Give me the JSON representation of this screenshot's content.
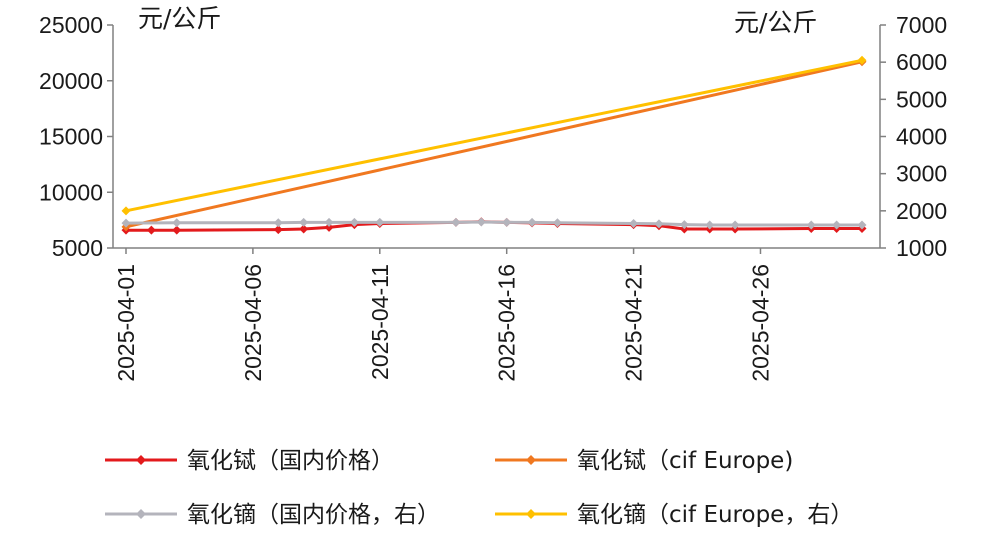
{
  "chart_data": {
    "type": "line",
    "title": "",
    "left_unit": "元/公斤",
    "right_unit": "元/公斤",
    "y_left": {
      "min": 5000,
      "max": 25000,
      "ticks": [
        "25000",
        "20000",
        "15000",
        "10000",
        "5000"
      ]
    },
    "y_right": {
      "min": 1000,
      "max": 7000,
      "ticks": [
        "7000",
        "6000",
        "5000",
        "4000",
        "3000",
        "2000",
        "1000"
      ]
    },
    "x_range": [
      "2025-04-01",
      "2025-04-30"
    ],
    "x_ticks": [
      "2025-04-01",
      "2025-04-06",
      "2025-04-11",
      "2025-04-16",
      "2025-04-21",
      "2025-04-26"
    ],
    "grid": false,
    "legend_position": "bottom",
    "series": [
      {
        "name": "氧化铽（国内价格）",
        "axis": "left",
        "color": "#e31a1c",
        "points": [
          [
            "2025-04-01",
            6600
          ],
          [
            "2025-04-02",
            6600
          ],
          [
            "2025-04-03",
            6600
          ],
          [
            "2025-04-07",
            6650
          ],
          [
            "2025-04-08",
            6700
          ],
          [
            "2025-04-09",
            6850
          ],
          [
            "2025-04-10",
            7100
          ],
          [
            "2025-04-11",
            7200
          ],
          [
            "2025-04-14",
            7300
          ],
          [
            "2025-04-15",
            7350
          ],
          [
            "2025-04-16",
            7300
          ],
          [
            "2025-04-17",
            7250
          ],
          [
            "2025-04-18",
            7200
          ],
          [
            "2025-04-21",
            7100
          ],
          [
            "2025-04-22",
            7000
          ],
          [
            "2025-04-23",
            6700
          ],
          [
            "2025-04-24",
            6700
          ],
          [
            "2025-04-25",
            6700
          ],
          [
            "2025-04-28",
            6750
          ],
          [
            "2025-04-29",
            6750
          ],
          [
            "2025-04-30",
            6750
          ]
        ]
      },
      {
        "name": "氧化铽（cif Europe)",
        "axis": "left",
        "color": "#f07820",
        "points": [
          [
            "2025-04-01",
            6900
          ],
          [
            "2025-04-30",
            21700
          ]
        ]
      },
      {
        "name": "氧化镝（国内价格，右）",
        "axis": "right",
        "color": "#b4b4bc",
        "points": [
          [
            "2025-04-01",
            1670
          ],
          [
            "2025-04-03",
            1680
          ],
          [
            "2025-04-07",
            1680
          ],
          [
            "2025-04-08",
            1690
          ],
          [
            "2025-04-09",
            1690
          ],
          [
            "2025-04-10",
            1690
          ],
          [
            "2025-04-11",
            1690
          ],
          [
            "2025-04-14",
            1690
          ],
          [
            "2025-04-15",
            1700
          ],
          [
            "2025-04-16",
            1690
          ],
          [
            "2025-04-17",
            1690
          ],
          [
            "2025-04-18",
            1680
          ],
          [
            "2025-04-21",
            1660
          ],
          [
            "2025-04-22",
            1650
          ],
          [
            "2025-04-23",
            1630
          ],
          [
            "2025-04-24",
            1620
          ],
          [
            "2025-04-25",
            1620
          ],
          [
            "2025-04-28",
            1620
          ],
          [
            "2025-04-29",
            1620
          ],
          [
            "2025-04-30",
            1620
          ]
        ]
      },
      {
        "name": "氧化镝（cif Europe，右）",
        "axis": "right",
        "color": "#ffc000",
        "points": [
          [
            "2025-04-01",
            2000
          ],
          [
            "2025-04-30",
            6050
          ]
        ]
      }
    ]
  }
}
